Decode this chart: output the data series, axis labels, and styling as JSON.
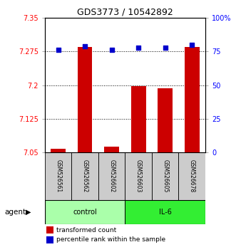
{
  "title": "GDS3773 / 10542892",
  "samples": [
    "GSM526561",
    "GSM526562",
    "GSM526602",
    "GSM526603",
    "GSM526605",
    "GSM526678"
  ],
  "groups": [
    "control",
    "control",
    "control",
    "IL-6",
    "IL-6",
    "IL-6"
  ],
  "red_values": [
    7.058,
    7.285,
    7.063,
    7.197,
    7.193,
    7.285
  ],
  "blue_values": [
    76,
    79,
    76,
    78,
    78,
    80
  ],
  "ylim_left": [
    7.05,
    7.35
  ],
  "ylim_right": [
    0,
    100
  ],
  "yticks_left": [
    7.05,
    7.125,
    7.2,
    7.275,
    7.35
  ],
  "ytick_labels_left": [
    "7.05",
    "7.125",
    "7.2",
    "7.275",
    "7.35"
  ],
  "yticks_right": [
    0,
    25,
    50,
    75,
    100
  ],
  "ytick_labels_right": [
    "0",
    "25",
    "50",
    "75",
    "100%"
  ],
  "hlines": [
    7.125,
    7.2,
    7.275
  ],
  "bar_color": "#cc0000",
  "dot_color": "#0000cc",
  "group_colors": {
    "control": "#aaffaa",
    "IL-6": "#33ee33"
  },
  "group_label": "agent",
  "legend_items": [
    "transformed count",
    "percentile rank within the sample"
  ],
  "bar_width": 0.55,
  "sample_bg": "#cccccc"
}
